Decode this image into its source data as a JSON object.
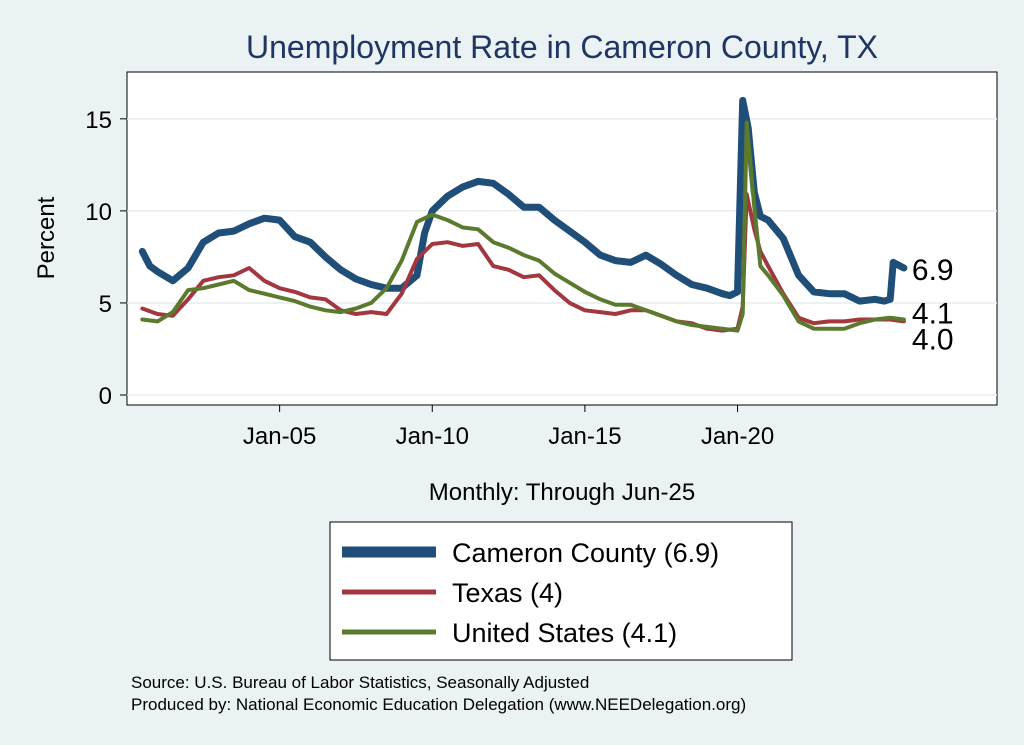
{
  "chart_data": {
    "type": "line",
    "title": "Unemployment Rate in Cameron  County, TX",
    "xlabel": "Monthly: Through Jun-25",
    "ylabel": "Percent",
    "ylim": [
      0,
      17
    ],
    "xlim": [
      2000.0,
      2028.5
    ],
    "yticks": [
      0,
      5,
      10,
      15
    ],
    "xticks": [
      {
        "label": "Jan-05",
        "value": 2005.0
      },
      {
        "label": "Jan-10",
        "value": 2010.0
      },
      {
        "label": "Jan-15",
        "value": 2015.0
      },
      {
        "label": "Jan-20",
        "value": 2020.0
      }
    ],
    "grid": true,
    "legend_position": "bottom",
    "series": [
      {
        "name": "Cameron  County (6.9)",
        "color": "#1f4e79",
        "stroke": "heavy",
        "end_label": "6.9",
        "points": [
          [
            2000.5,
            7.8
          ],
          [
            2000.75,
            7.0
          ],
          [
            2001.0,
            6.7
          ],
          [
            2001.5,
            6.2
          ],
          [
            2002.0,
            6.9
          ],
          [
            2002.5,
            8.3
          ],
          [
            2003.0,
            8.8
          ],
          [
            2003.5,
            8.9
          ],
          [
            2004.0,
            9.3
          ],
          [
            2004.5,
            9.6
          ],
          [
            2005.0,
            9.5
          ],
          [
            2005.5,
            8.6
          ],
          [
            2006.0,
            8.3
          ],
          [
            2006.5,
            7.5
          ],
          [
            2007.0,
            6.8
          ],
          [
            2007.5,
            6.3
          ],
          [
            2008.0,
            6.0
          ],
          [
            2008.5,
            5.8
          ],
          [
            2009.0,
            5.8
          ],
          [
            2009.5,
            6.5
          ],
          [
            2009.75,
            8.8
          ],
          [
            2010.0,
            10.0
          ],
          [
            2010.5,
            10.8
          ],
          [
            2011.0,
            11.3
          ],
          [
            2011.5,
            11.6
          ],
          [
            2012.0,
            11.5
          ],
          [
            2012.5,
            10.9
          ],
          [
            2013.0,
            10.2
          ],
          [
            2013.5,
            10.2
          ],
          [
            2014.0,
            9.5
          ],
          [
            2014.5,
            8.9
          ],
          [
            2015.0,
            8.3
          ],
          [
            2015.5,
            7.6
          ],
          [
            2016.0,
            7.3
          ],
          [
            2016.5,
            7.2
          ],
          [
            2017.0,
            7.6
          ],
          [
            2017.5,
            7.1
          ],
          [
            2018.0,
            6.5
          ],
          [
            2018.5,
            6.0
          ],
          [
            2019.0,
            5.8
          ],
          [
            2019.5,
            5.5
          ],
          [
            2019.75,
            5.4
          ],
          [
            2020.0,
            5.6
          ],
          [
            2020.17,
            16.0
          ],
          [
            2020.35,
            14.5
          ],
          [
            2020.55,
            11.0
          ],
          [
            2020.75,
            9.7
          ],
          [
            2021.0,
            9.5
          ],
          [
            2021.5,
            8.5
          ],
          [
            2022.0,
            6.5
          ],
          [
            2022.5,
            5.6
          ],
          [
            2023.0,
            5.5
          ],
          [
            2023.5,
            5.5
          ],
          [
            2024.0,
            5.1
          ],
          [
            2024.5,
            5.2
          ],
          [
            2024.8,
            5.1
          ],
          [
            2025.0,
            5.2
          ],
          [
            2025.1,
            7.2
          ],
          [
            2025.45,
            6.9
          ]
        ]
      },
      {
        "name": "Texas (4)",
        "color": "#a2373f",
        "stroke": "normal",
        "end_label": "4.0",
        "points": [
          [
            2000.5,
            4.7
          ],
          [
            2001.0,
            4.4
          ],
          [
            2001.5,
            4.3
          ],
          [
            2002.0,
            5.2
          ],
          [
            2002.5,
            6.2
          ],
          [
            2003.0,
            6.4
          ],
          [
            2003.5,
            6.5
          ],
          [
            2004.0,
            6.9
          ],
          [
            2004.5,
            6.2
          ],
          [
            2005.0,
            5.8
          ],
          [
            2005.5,
            5.6
          ],
          [
            2006.0,
            5.3
          ],
          [
            2006.5,
            5.2
          ],
          [
            2007.0,
            4.6
          ],
          [
            2007.5,
            4.4
          ],
          [
            2008.0,
            4.5
          ],
          [
            2008.5,
            4.4
          ],
          [
            2009.0,
            5.5
          ],
          [
            2009.5,
            7.4
          ],
          [
            2010.0,
            8.2
          ],
          [
            2010.5,
            8.3
          ],
          [
            2011.0,
            8.1
          ],
          [
            2011.5,
            8.2
          ],
          [
            2012.0,
            7.0
          ],
          [
            2012.5,
            6.8
          ],
          [
            2013.0,
            6.4
          ],
          [
            2013.5,
            6.5
          ],
          [
            2014.0,
            5.7
          ],
          [
            2014.5,
            5.0
          ],
          [
            2015.0,
            4.6
          ],
          [
            2015.5,
            4.5
          ],
          [
            2016.0,
            4.4
          ],
          [
            2016.5,
            4.6
          ],
          [
            2017.0,
            4.6
          ],
          [
            2017.5,
            4.3
          ],
          [
            2018.0,
            4.0
          ],
          [
            2018.5,
            3.9
          ],
          [
            2019.0,
            3.6
          ],
          [
            2019.5,
            3.5
          ],
          [
            2020.0,
            3.6
          ],
          [
            2020.17,
            4.8
          ],
          [
            2020.3,
            10.9
          ],
          [
            2020.55,
            9.0
          ],
          [
            2020.75,
            7.8
          ],
          [
            2021.0,
            7.0
          ],
          [
            2021.5,
            5.5
          ],
          [
            2022.0,
            4.2
          ],
          [
            2022.5,
            3.9
          ],
          [
            2023.0,
            4.0
          ],
          [
            2023.5,
            4.0
          ],
          [
            2024.0,
            4.1
          ],
          [
            2024.5,
            4.1
          ],
          [
            2025.0,
            4.1
          ],
          [
            2025.45,
            4.0
          ]
        ]
      },
      {
        "name": "United States (4.1)",
        "color": "#5b7a2e",
        "stroke": "normal",
        "end_label": "4.1",
        "points": [
          [
            2000.5,
            4.1
          ],
          [
            2001.0,
            4.0
          ],
          [
            2001.5,
            4.5
          ],
          [
            2002.0,
            5.7
          ],
          [
            2002.5,
            5.8
          ],
          [
            2003.0,
            6.0
          ],
          [
            2003.5,
            6.2
          ],
          [
            2004.0,
            5.7
          ],
          [
            2004.5,
            5.5
          ],
          [
            2005.0,
            5.3
          ],
          [
            2005.5,
            5.1
          ],
          [
            2006.0,
            4.8
          ],
          [
            2006.5,
            4.6
          ],
          [
            2007.0,
            4.5
          ],
          [
            2007.5,
            4.7
          ],
          [
            2008.0,
            5.0
          ],
          [
            2008.5,
            5.8
          ],
          [
            2009.0,
            7.3
          ],
          [
            2009.5,
            9.4
          ],
          [
            2010.0,
            9.8
          ],
          [
            2010.5,
            9.5
          ],
          [
            2011.0,
            9.1
          ],
          [
            2011.5,
            9.0
          ],
          [
            2012.0,
            8.3
          ],
          [
            2012.5,
            8.0
          ],
          [
            2013.0,
            7.6
          ],
          [
            2013.5,
            7.3
          ],
          [
            2014.0,
            6.6
          ],
          [
            2014.5,
            6.1
          ],
          [
            2015.0,
            5.6
          ],
          [
            2015.5,
            5.2
          ],
          [
            2016.0,
            4.9
          ],
          [
            2016.5,
            4.9
          ],
          [
            2017.0,
            4.6
          ],
          [
            2017.5,
            4.3
          ],
          [
            2018.0,
            4.0
          ],
          [
            2018.5,
            3.8
          ],
          [
            2019.0,
            3.7
          ],
          [
            2019.5,
            3.6
          ],
          [
            2020.0,
            3.5
          ],
          [
            2020.17,
            4.4
          ],
          [
            2020.3,
            14.8
          ],
          [
            2020.55,
            10.2
          ],
          [
            2020.75,
            7.0
          ],
          [
            2021.0,
            6.5
          ],
          [
            2021.5,
            5.4
          ],
          [
            2022.0,
            4.0
          ],
          [
            2022.5,
            3.6
          ],
          [
            2023.0,
            3.6
          ],
          [
            2023.5,
            3.6
          ],
          [
            2024.0,
            3.9
          ],
          [
            2024.5,
            4.1
          ],
          [
            2025.0,
            4.2
          ],
          [
            2025.45,
            4.1
          ]
        ]
      }
    ]
  },
  "source": {
    "line1": "Source: U.S. Bureau of Labor Statistics, Seasonally Adjusted",
    "line2": "Produced by: National Economic Education Delegation (www.NEEDelegation.org)"
  }
}
